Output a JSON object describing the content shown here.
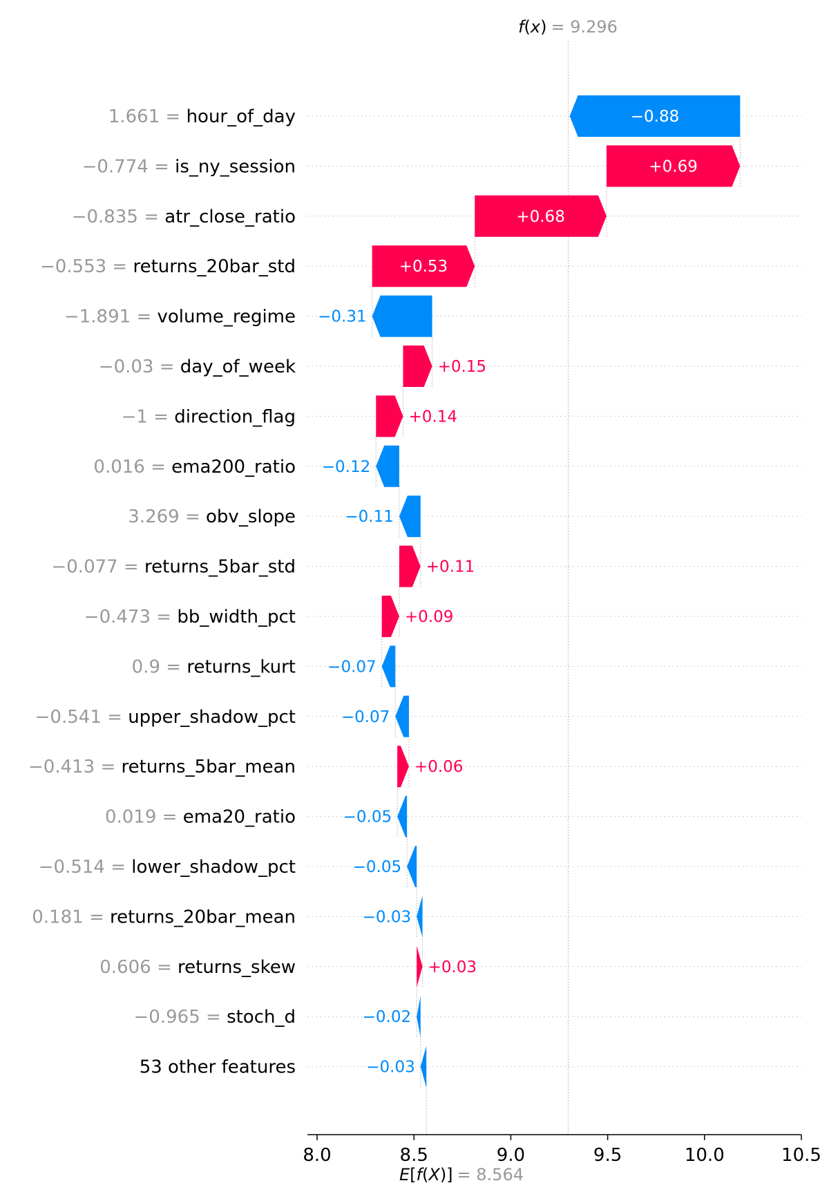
{
  "chart_data": {
    "type": "waterfall",
    "base_value_label": "E[f(X)]",
    "base_value_text": "= 8.564",
    "base_value": 8.564,
    "output_value_label": "f(x)",
    "output_value_text": "= 9.296",
    "output_value": 9.296,
    "xlim": [
      7.95,
      10.5
    ],
    "xticks": [
      {
        "value": 8.0,
        "label": "8.0"
      },
      {
        "value": 8.5,
        "label": "8.5"
      },
      {
        "value": 9.0,
        "label": "9.0"
      },
      {
        "value": 9.5,
        "label": "9.5"
      },
      {
        "value": 10.0,
        "label": "10.0"
      },
      {
        "value": 10.5,
        "label": "10.5"
      }
    ],
    "features": [
      {
        "value_text": "1.661 =",
        "name": "hour_of_day",
        "contribution": -0.88,
        "label": "−0.88"
      },
      {
        "value_text": "−0.774 =",
        "name": "is_ny_session",
        "contribution": 0.69,
        "label": "+0.69"
      },
      {
        "value_text": "−0.835 =",
        "name": "atr_close_ratio",
        "contribution": 0.68,
        "label": "+0.68"
      },
      {
        "value_text": "−0.553 =",
        "name": "returns_20bar_std",
        "contribution": 0.53,
        "label": "+0.53"
      },
      {
        "value_text": "−1.891 =",
        "name": "volume_regime",
        "contribution": -0.31,
        "label": "−0.31"
      },
      {
        "value_text": "−0.03 =",
        "name": "day_of_week",
        "contribution": 0.15,
        "label": "+0.15"
      },
      {
        "value_text": "−1 =",
        "name": "direction_flag",
        "contribution": 0.14,
        "label": "+0.14"
      },
      {
        "value_text": "0.016 =",
        "name": "ema200_ratio",
        "contribution": -0.12,
        "label": "−0.12"
      },
      {
        "value_text": "3.269 =",
        "name": "obv_slope",
        "contribution": -0.11,
        "label": "−0.11"
      },
      {
        "value_text": "−0.077 =",
        "name": "returns_5bar_std",
        "contribution": 0.11,
        "label": "+0.11"
      },
      {
        "value_text": "−0.473 =",
        "name": "bb_width_pct",
        "contribution": 0.09,
        "label": "+0.09"
      },
      {
        "value_text": "0.9 =",
        "name": "returns_kurt",
        "contribution": -0.07,
        "label": "−0.07"
      },
      {
        "value_text": "−0.541 =",
        "name": "upper_shadow_pct",
        "contribution": -0.07,
        "label": "−0.07"
      },
      {
        "value_text": "−0.413 =",
        "name": "returns_5bar_mean",
        "contribution": 0.06,
        "label": "+0.06"
      },
      {
        "value_text": "0.019 =",
        "name": "ema20_ratio",
        "contribution": -0.05,
        "label": "−0.05"
      },
      {
        "value_text": "−0.514 =",
        "name": "lower_shadow_pct",
        "contribution": -0.05,
        "label": "−0.05"
      },
      {
        "value_text": "0.181 =",
        "name": "returns_20bar_mean",
        "contribution": -0.03,
        "label": "−0.03"
      },
      {
        "value_text": "0.606 =",
        "name": "returns_skew",
        "contribution": 0.03,
        "label": "+0.03"
      },
      {
        "value_text": "−0.965 =",
        "name": "stoch_d",
        "contribution": -0.02,
        "label": "−0.02"
      },
      {
        "value_text": "",
        "name": "53 other features",
        "contribution": -0.03,
        "label": "−0.03"
      }
    ],
    "colors": {
      "positive": "#ff0051",
      "negative": "#008bfb",
      "value_text": "#999999",
      "grid": "#cccccc"
    }
  }
}
